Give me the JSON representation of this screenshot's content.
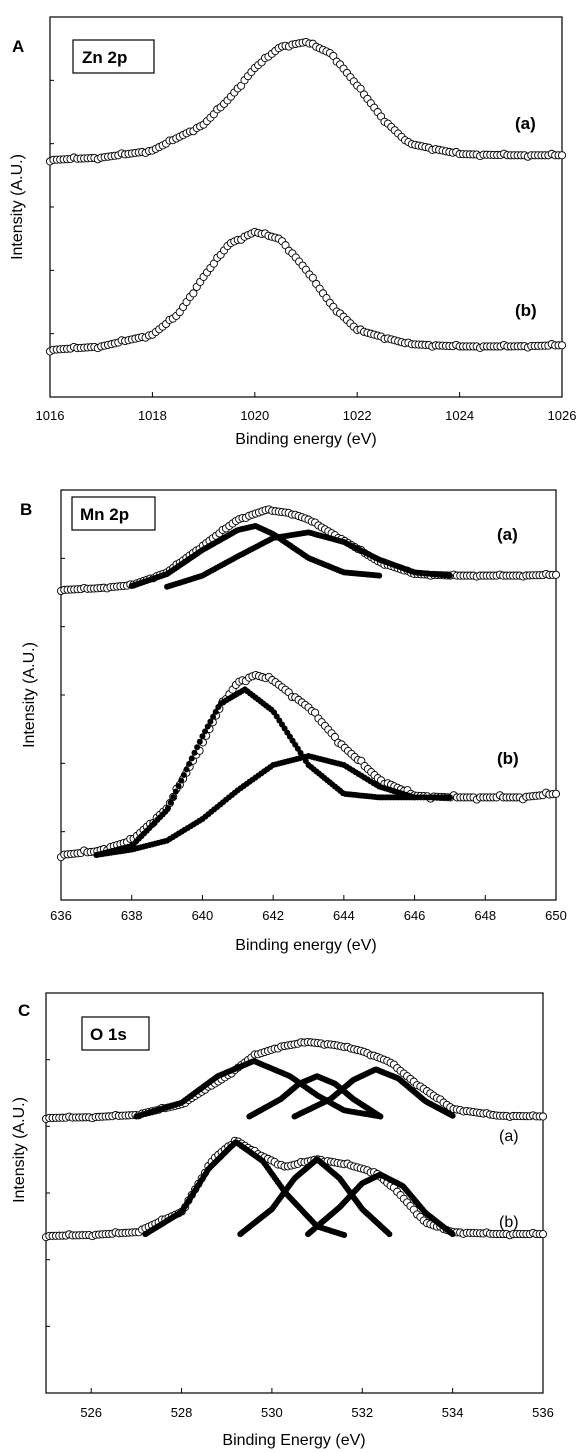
{
  "chart_data": [
    {
      "type": "line",
      "panel": "A",
      "inset_label": "Zn 2p",
      "xlabel": "Binding energy (eV)",
      "ylabel": "Intensity (A.U.)",
      "xlim": [
        1016,
        1026
      ],
      "xticks": [
        "1016",
        "1018",
        "1020",
        "1022",
        "1024",
        "1026"
      ],
      "curve_labels": [
        "(a)",
        "(b)"
      ],
      "series": [
        {
          "name": "(a)",
          "marker": "open-circle",
          "x": [
            1016,
            1017,
            1018,
            1019,
            1019.5,
            1020,
            1020.5,
            1021,
            1021.5,
            1022,
            1022.5,
            1023,
            1024,
            1025,
            1026
          ],
          "y": [
            0.0,
            0.02,
            0.08,
            0.3,
            0.52,
            0.78,
            0.96,
            1.0,
            0.9,
            0.63,
            0.35,
            0.14,
            0.05,
            0.04,
            0.04
          ]
        },
        {
          "name": "(b)",
          "marker": "open-circle",
          "x": [
            1016,
            1017,
            1018,
            1018.5,
            1019,
            1019.5,
            1020,
            1020.5,
            1021,
            1021.5,
            1022,
            1023,
            1024,
            1025,
            1026
          ],
          "y": [
            0.0,
            0.03,
            0.13,
            0.3,
            0.62,
            0.9,
            1.0,
            0.94,
            0.68,
            0.38,
            0.17,
            0.05,
            0.03,
            0.03,
            0.04
          ]
        }
      ]
    },
    {
      "type": "line",
      "panel": "B",
      "inset_label": "Mn 2p",
      "xlabel": "Binding energy (eV)",
      "ylabel": "Intensity (A.U.)",
      "xlim": [
        636,
        650
      ],
      "xticks": [
        "636",
        "638",
        "640",
        "642",
        "644",
        "646",
        "648",
        "650"
      ],
      "curve_labels": [
        "(a)",
        "(b)"
      ],
      "series": [
        {
          "name": "(a)",
          "marker": "open-circle",
          "x": [
            636,
            637,
            638,
            639,
            640,
            641,
            641.8,
            642.5,
            643,
            644,
            645,
            646,
            647,
            648,
            649,
            650
          ],
          "y": [
            0.0,
            0.02,
            0.06,
            0.22,
            0.55,
            0.88,
            1.0,
            0.96,
            0.88,
            0.62,
            0.35,
            0.2,
            0.18,
            0.18,
            0.18,
            0.19
          ]
        },
        {
          "name": "(a) component 1",
          "marker": "filled",
          "x": [
            638,
            639,
            640,
            641,
            641.5,
            642,
            643,
            644,
            645
          ],
          "y": [
            0.05,
            0.2,
            0.5,
            0.75,
            0.8,
            0.7,
            0.4,
            0.22,
            0.18
          ]
        },
        {
          "name": "(a) component 2",
          "marker": "filled",
          "x": [
            639,
            640,
            641,
            642,
            643,
            644,
            645,
            646,
            647
          ],
          "y": [
            0.04,
            0.18,
            0.42,
            0.65,
            0.72,
            0.6,
            0.38,
            0.22,
            0.18
          ]
        },
        {
          "name": "(b)",
          "marker": "open-circle",
          "x": [
            636,
            637,
            638,
            639,
            640,
            640.5,
            641,
            641.5,
            642,
            643,
            644,
            645,
            646,
            647,
            648,
            649,
            650
          ],
          "y": [
            0.0,
            0.02,
            0.08,
            0.26,
            0.62,
            0.82,
            0.96,
            1.0,
            0.97,
            0.82,
            0.6,
            0.42,
            0.33,
            0.32,
            0.32,
            0.32,
            0.34
          ]
        },
        {
          "name": "(b) component 1",
          "marker": "filled",
          "x": [
            637,
            638,
            639,
            640,
            640.5,
            641.2,
            642,
            643,
            644,
            645,
            646
          ],
          "y": [
            0.0,
            0.05,
            0.25,
            0.66,
            0.84,
            0.92,
            0.8,
            0.5,
            0.34,
            0.32,
            0.32
          ]
        },
        {
          "name": "(b) component 2",
          "marker": "filled",
          "x": [
            637,
            638,
            639,
            640,
            641,
            642,
            643,
            644,
            645,
            646,
            647
          ],
          "y": [
            0.0,
            0.03,
            0.08,
            0.2,
            0.36,
            0.5,
            0.55,
            0.5,
            0.38,
            0.32,
            0.32
          ]
        }
      ]
    },
    {
      "type": "line",
      "panel": "C",
      "inset_label": "O 1s",
      "xlabel": "Binding Energy (eV)",
      "ylabel": "Intensity (A.U.)",
      "xlim": [
        525,
        536
      ],
      "xticks": [
        "526",
        "528",
        "530",
        "532",
        "534",
        "536"
      ],
      "curve_labels": [
        "(a)",
        "(b)"
      ],
      "series": [
        {
          "name": "(a)",
          "marker": "open-circle",
          "x": [
            525,
            526,
            527,
            528,
            529,
            529.6,
            530.2,
            530.8,
            531.4,
            532,
            532.6,
            533.2,
            534,
            535,
            536
          ],
          "y": [
            0.0,
            0.01,
            0.04,
            0.18,
            0.55,
            0.82,
            0.94,
            1.0,
            0.96,
            0.88,
            0.74,
            0.45,
            0.12,
            0.03,
            0.02
          ]
        },
        {
          "name": "(a) component 1",
          "marker": "filled",
          "x": [
            527,
            528,
            528.8,
            529.6,
            530.4,
            531,
            531.6,
            532.4
          ],
          "y": [
            0.02,
            0.2,
            0.55,
            0.75,
            0.55,
            0.3,
            0.1,
            0.02
          ]
        },
        {
          "name": "(a) component 2",
          "marker": "filled",
          "x": [
            529.5,
            530.2,
            530.6,
            531,
            531.4,
            531.8,
            532.4
          ],
          "y": [
            0.02,
            0.25,
            0.45,
            0.55,
            0.45,
            0.25,
            0.02
          ]
        },
        {
          "name": "(a) component 3",
          "marker": "filled",
          "x": [
            530.5,
            531.3,
            531.8,
            532.3,
            532.8,
            533.4,
            534
          ],
          "y": [
            0.02,
            0.25,
            0.5,
            0.64,
            0.52,
            0.22,
            0.03
          ]
        },
        {
          "name": "(b)",
          "marker": "open-circle",
          "x": [
            525,
            526,
            527,
            528,
            528.7,
            529.2,
            529.7,
            530.3,
            531,
            531.7,
            532.3,
            532.8,
            533.4,
            534,
            535,
            536
          ],
          "y": [
            0.0,
            0.01,
            0.04,
            0.25,
            0.8,
            1.0,
            0.85,
            0.72,
            0.8,
            0.74,
            0.66,
            0.45,
            0.14,
            0.04,
            0.02,
            0.02
          ]
        },
        {
          "name": "(b) component 1",
          "marker": "filled",
          "x": [
            527.2,
            528,
            528.6,
            529.2,
            529.8,
            530.3,
            531,
            531.6
          ],
          "y": [
            0.02,
            0.25,
            0.7,
            0.98,
            0.78,
            0.45,
            0.1,
            0.01
          ]
        },
        {
          "name": "(b) component 2",
          "marker": "filled",
          "x": [
            529.3,
            530,
            530.5,
            531,
            531.5,
            532,
            532.6
          ],
          "y": [
            0.02,
            0.28,
            0.6,
            0.8,
            0.6,
            0.28,
            0.02
          ]
        },
        {
          "name": "(b) component 3",
          "marker": "filled",
          "x": [
            530.8,
            531.5,
            532,
            532.4,
            532.9,
            533.4,
            534
          ],
          "y": [
            0.02,
            0.3,
            0.55,
            0.64,
            0.52,
            0.24,
            0.02
          ]
        }
      ]
    }
  ]
}
